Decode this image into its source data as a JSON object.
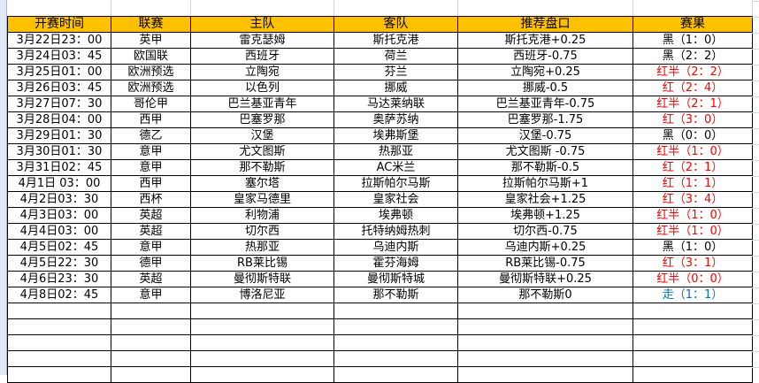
{
  "headers": [
    "开赛时间",
    "联赛",
    "主队",
    "客队",
    "推荐盘口",
    "赛果"
  ],
  "rows": [
    {
      "time": "3月22日23：00",
      "league": "英甲",
      "home": "雷克瑟姆",
      "away": "斯托克港",
      "pick": "斯托克港+0.25",
      "result": "黑（1：0）",
      "color": "#000000"
    },
    {
      "time": "3月24日03：45",
      "league": "欧国联",
      "home": "西班牙",
      "away": "荷兰",
      "pick": "西班牙-0.75",
      "result": "黑（2：2）",
      "color": "#000000"
    },
    {
      "time": "3月25日01：00",
      "league": "欧洲预选",
      "home": "立陶宛",
      "away": "芬兰",
      "pick": "立陶宛+0.25",
      "result": "红半（2：2）",
      "color": "#ff0000"
    },
    {
      "time": "3月26日03：45",
      "league": "欧洲预选",
      "home": "以色列",
      "away": "挪威",
      "pick": "挪威-0.5",
      "result": "红（2：4）",
      "color": "#ff0000"
    },
    {
      "time": "3月27日07：30",
      "league": "哥伦甲",
      "home": "巴兰基亚青年",
      "away": "马达莱纳联",
      "pick": "巴兰基亚青年-0.75",
      "result": "红半（2：1）",
      "color": "#ff0000"
    },
    {
      "time": "3月28日04：00",
      "league": "西甲",
      "home": "巴塞罗那",
      "away": "奥萨苏纳",
      "pick": "巴塞罗那-1.75",
      "result": "红（3：0）",
      "color": "#ff0000"
    },
    {
      "time": "3月29日01：30",
      "league": "德乙",
      "home": "汉堡",
      "away": "埃弗斯堡",
      "pick": "汉堡-0.75",
      "result": "黑（0：0）",
      "color": "#000000"
    },
    {
      "time": "3月30日01：30",
      "league": "意甲",
      "home": "尤文图斯",
      "away": "热那亚",
      "pick": "尤文图斯 -0.75",
      "result": "红半（1：0）",
      "color": "#ff0000"
    },
    {
      "time": "3月31日02：45",
      "league": "意甲",
      "home": "那不勒斯",
      "away": "AC米兰",
      "pick": "那不勒斯-0.5",
      "result": "红（2：1）",
      "color": "#ff0000"
    },
    {
      "time": "4月1日 03：00",
      "league": "西甲",
      "home": "塞尔塔",
      "away": "拉斯帕尔马斯",
      "pick": "拉斯帕尔马斯+1",
      "result": "红（1：1）",
      "color": "#ff0000"
    },
    {
      "time": "4月2日03：30",
      "league": "西杯",
      "home": "皇家马德里",
      "away": "皇家社会",
      "pick": "皇家社会+1.25",
      "result": "红（3：4）",
      "color": "#ff0000"
    },
    {
      "time": "4月3日03：00",
      "league": "英超",
      "home": "利物浦",
      "away": "埃弗顿",
      "pick": "埃弗顿+1.25",
      "result": "红半（1：0）",
      "color": "#ff0000"
    },
    {
      "time": "4月4日03：00",
      "league": "英超",
      "home": "切尔西",
      "away": "托特纳姆热刺",
      "pick": "切尔西-0.75",
      "result": "红半（1：0）",
      "color": "#ff0000"
    },
    {
      "time": "4月5日02：45",
      "league": "意甲",
      "home": "热那亚",
      "away": "乌迪内斯",
      "pick": "乌迪内斯+0.25",
      "result": "黑（1：0）",
      "color": "#000000"
    },
    {
      "time": "4月5日22：30",
      "league": "德甲",
      "home": "RB莱比锡",
      "away": "霍芬海姆",
      "pick": "RB莱比锡-0.75",
      "result": "红（3：1）",
      "color": "#ff0000"
    },
    {
      "time": "4月6日23：30",
      "league": "英超",
      "home": "曼彻斯特联",
      "away": "曼彻斯特城",
      "pick": "曼彻斯特联+0.25",
      "result": "红半（0：0）",
      "color": "#ff0000"
    },
    {
      "time": "4月8日02：45",
      "league": "意甲",
      "home": "博洛尼亚",
      "away": "那不勒斯",
      "pick": "那不勒斯0",
      "result": "走（1：1）",
      "color": "#0070c0"
    }
  ],
  "colors": {
    "header_bg": "#ffc000",
    "win": "#ff0000",
    "loss": "#000000",
    "push": "#0070c0"
  }
}
